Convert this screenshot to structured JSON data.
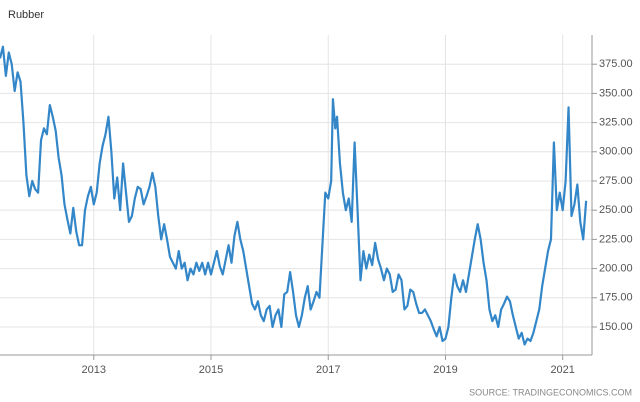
{
  "chart_data": {
    "type": "line",
    "title": "Rubber",
    "source": "SOURCE: TRADINGECONOMICS.COM",
    "x": [
      2011.4,
      2011.45,
      2011.5,
      2011.55,
      2011.6,
      2011.65,
      2011.7,
      2011.75,
      2011.8,
      2011.85,
      2011.9,
      2011.95,
      2012.0,
      2012.05,
      2012.1,
      2012.15,
      2012.2,
      2012.25,
      2012.3,
      2012.35,
      2012.4,
      2012.45,
      2012.5,
      2012.55,
      2012.6,
      2012.65,
      2012.7,
      2012.75,
      2012.8,
      2012.85,
      2012.9,
      2012.95,
      2013.0,
      2013.05,
      2013.1,
      2013.15,
      2013.2,
      2013.25,
      2013.3,
      2013.35,
      2013.4,
      2013.45,
      2013.5,
      2013.55,
      2013.6,
      2013.65,
      2013.7,
      2013.75,
      2013.8,
      2013.85,
      2013.9,
      2013.95,
      2014.0,
      2014.05,
      2014.1,
      2014.15,
      2014.2,
      2014.25,
      2014.3,
      2014.35,
      2014.4,
      2014.45,
      2014.5,
      2014.55,
      2014.6,
      2014.65,
      2014.7,
      2014.75,
      2014.8,
      2014.85,
      2014.9,
      2014.95,
      2015.0,
      2015.1,
      2015.15,
      2015.2,
      2015.3,
      2015.35,
      2015.4,
      2015.45,
      2015.5,
      2015.55,
      2015.6,
      2015.65,
      2015.7,
      2015.75,
      2015.8,
      2015.85,
      2015.9,
      2015.95,
      2016.0,
      2016.05,
      2016.1,
      2016.15,
      2016.2,
      2016.25,
      2016.3,
      2016.35,
      2016.4,
      2016.45,
      2016.5,
      2016.55,
      2016.6,
      2016.65,
      2016.7,
      2016.75,
      2016.8,
      2016.85,
      2016.9,
      2016.95,
      2017.0,
      2017.05,
      2017.08,
      2017.12,
      2017.15,
      2017.2,
      2017.25,
      2017.3,
      2017.35,
      2017.4,
      2017.45,
      2017.5,
      2017.55,
      2017.6,
      2017.65,
      2017.7,
      2017.75,
      2017.8,
      2017.85,
      2017.9,
      2017.95,
      2018.0,
      2018.05,
      2018.1,
      2018.15,
      2018.2,
      2018.25,
      2018.3,
      2018.35,
      2018.4,
      2018.45,
      2018.5,
      2018.55,
      2018.6,
      2018.65,
      2018.7,
      2018.75,
      2018.8,
      2018.85,
      2018.9,
      2018.95,
      2019.0,
      2019.05,
      2019.1,
      2019.15,
      2019.2,
      2019.25,
      2019.3,
      2019.35,
      2019.4,
      2019.45,
      2019.5,
      2019.55,
      2019.6,
      2019.65,
      2019.7,
      2019.75,
      2019.8,
      2019.85,
      2019.9,
      2019.95,
      2020.0,
      2020.05,
      2020.1,
      2020.15,
      2020.2,
      2020.25,
      2020.3,
      2020.35,
      2020.4,
      2020.45,
      2020.5,
      2020.55,
      2020.6,
      2020.65,
      2020.7,
      2020.75,
      2020.8,
      2020.85,
      2020.9,
      2020.95,
      2021.0,
      2021.05,
      2021.1,
      2021.15,
      2021.2,
      2021.25,
      2021.3,
      2021.35,
      2021.4
    ],
    "series": [
      {
        "name": "Rubber",
        "color": "#3387c9",
        "values": [
          380,
          390,
          365,
          385,
          375,
          352,
          368,
          360,
          325,
          280,
          262,
          275,
          268,
          265,
          310,
          320,
          315,
          340,
          330,
          318,
          295,
          280,
          255,
          242,
          230,
          252,
          232,
          220,
          220,
          250,
          262,
          270,
          255,
          265,
          290,
          305,
          315,
          330,
          300,
          260,
          278,
          250,
          290,
          265,
          240,
          245,
          260,
          270,
          268,
          255,
          262,
          270,
          282,
          270,
          245,
          225,
          238,
          225,
          210,
          205,
          200,
          215,
          200,
          205,
          190,
          200,
          195,
          205,
          198,
          205,
          195,
          205,
          195,
          215,
          202,
          195,
          220,
          205,
          228,
          240,
          225,
          215,
          200,
          185,
          170,
          165,
          172,
          160,
          155,
          165,
          168,
          150,
          160,
          165,
          150,
          178,
          180,
          197,
          180,
          160,
          150,
          160,
          175,
          185,
          165,
          172,
          180,
          175,
          220,
          265,
          260,
          275,
          345,
          320,
          330,
          290,
          265,
          250,
          260,
          240,
          308,
          250,
          190,
          215,
          200,
          212,
          203,
          222,
          208,
          200,
          190,
          200,
          195,
          180,
          182,
          195,
          190,
          165,
          168,
          182,
          180,
          170,
          162,
          162,
          165,
          160,
          155,
          148,
          142,
          150,
          138,
          140,
          150,
          175,
          195,
          185,
          180,
          190,
          180,
          195,
          210,
          225,
          238,
          225,
          205,
          190,
          165,
          155,
          160,
          150,
          165,
          170,
          176,
          172,
          160,
          150,
          140,
          145,
          135,
          140,
          138,
          145,
          155,
          165,
          185,
          200,
          215,
          225,
          308,
          250,
          265,
          250,
          275,
          338,
          245,
          255,
          272,
          240,
          225,
          258
        ]
      }
    ],
    "xlim": [
      2011.4,
      2021.5
    ],
    "xticks": [
      2013,
      2015,
      2017,
      2019,
      2021
    ],
    "ylim": [
      126,
      400
    ],
    "yticks": [
      {
        "value": 150,
        "label": "150.00"
      },
      {
        "value": 175,
        "label": "175.00"
      },
      {
        "value": 200,
        "label": "200.00"
      },
      {
        "value": 225,
        "label": "225.00"
      },
      {
        "value": 250,
        "label": "250.00"
      },
      {
        "value": 275,
        "label": "275.00"
      },
      {
        "value": 300,
        "label": "300.00"
      },
      {
        "value": 325,
        "label": "325.00"
      },
      {
        "value": 350,
        "label": "350.00"
      },
      {
        "value": 375,
        "label": "375.00"
      }
    ],
    "grid": true
  }
}
